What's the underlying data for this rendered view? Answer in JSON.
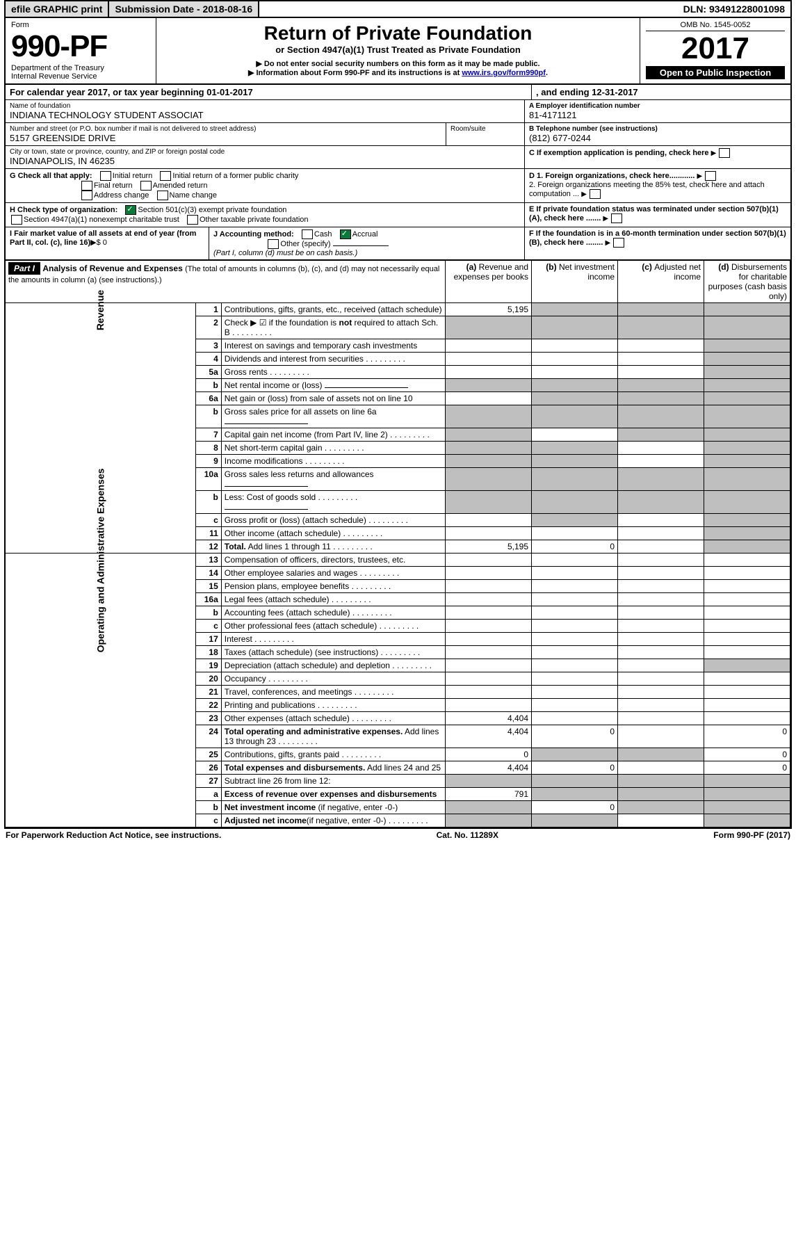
{
  "topbar": {
    "efile": "efile GRAPHIC print",
    "subdate_lbl": "Submission Date - 2018-08-16",
    "dln": "DLN: 93491228001098"
  },
  "hdr": {
    "form": "Form",
    "formno": "990-PF",
    "dept": "Department of the Treasury",
    "irs": "Internal Revenue Service",
    "title": "Return of Private Foundation",
    "subtitle": "or Section 4947(a)(1) Trust Treated as Private Foundation",
    "warn1": "▶ Do not enter social security numbers on this form as it may be made public.",
    "warn2": "▶ Information about Form 990-PF and its instructions is at ",
    "link": "www.irs.gov/form990pf",
    "dot": ".",
    "omb": "OMB No. 1545-0052",
    "year": "2017",
    "open": "Open to Public Inspection"
  },
  "cal": {
    "line": "For calendar year 2017, or tax year beginning 01-01-2017",
    "end": ", and ending 12-31-2017"
  },
  "id": {
    "name_lbl": "Name of foundation",
    "name": "INDIANA TECHNOLOGY STUDENT ASSOCIAT",
    "addr_lbl": "Number and street (or P.O. box number if mail is not delivered to street address)",
    "addr": "5157 GREENSIDE DRIVE",
    "room_lbl": "Room/suite",
    "city_lbl": "City or town, state or province, country, and ZIP or foreign postal code",
    "city": "INDIANAPOLIS, IN  46235",
    "a_lbl": "A Employer identification number",
    "a": "81-4171121",
    "b_lbl": "B Telephone number (see instructions)",
    "b": "(812) 677-0244",
    "c": "C If exemption application is pending, check here",
    "g": "G Check all that apply:",
    "g1": "Initial return",
    "g2": "Initial return of a former public charity",
    "g3": "Final return",
    "g4": "Amended return",
    "g5": "Address change",
    "g6": "Name change",
    "h": "H Check type of organization:",
    "h1": "Section 501(c)(3) exempt private foundation",
    "h2": "Section 4947(a)(1) nonexempt charitable trust",
    "h3": "Other taxable private foundation",
    "d1": "D 1. Foreign organizations, check here............",
    "d2": "2. Foreign organizations meeting the 85% test, check here and attach computation ...",
    "e": "E  If private foundation status was terminated under section 507(b)(1)(A), check here .......",
    "i": "I Fair market value of all assets at end of year (from Part II, col. (c), line 16)",
    "ival": "▶$  0",
    "j": "J Accounting method:",
    "j1": "Cash",
    "j2": "Accrual",
    "j3": "Other (specify)",
    "jnote": "(Part I, column (d) must be on cash basis.)",
    "f": "F  If the foundation is in a 60-month termination under section 507(b)(1)(B), check here ........"
  },
  "p1": {
    "tag": "Part I",
    "title": "Analysis of Revenue and Expenses ",
    "note": "(The total of amounts in columns (b), (c), and (d) may not necessarily equal the amounts in column (a) (see instructions).)",
    "ca": "(a)",
    "cal": "Revenue and expenses per books",
    "cb": "(b)",
    "cbl": "Net investment income",
    "cc": "(c)",
    "ccl": "Adjusted net income",
    "cd": "(d)",
    "cdl": "Disbursements for charitable purposes (cash basis only)",
    "sideRev": "Revenue",
    "sideExp": "Operating and Administrative Expenses"
  },
  "rows": [
    {
      "n": "1",
      "d": "Contributions, gifts, grants, etc., received (attach schedule)",
      "a": "5,195",
      "shB": 1,
      "shC": 1,
      "shD": 1
    },
    {
      "n": "2",
      "d": "Check ▶ ☑ if the foundation is <b>not</b> required to attach Sch. B",
      "dots": 1,
      "shA": 1,
      "shB": 1,
      "shC": 1,
      "shD": 1
    },
    {
      "n": "3",
      "d": "Interest on savings and temporary cash investments",
      "shD": 1
    },
    {
      "n": "4",
      "d": "Dividends and interest from securities",
      "dots": 1,
      "shD": 1
    },
    {
      "n": "5a",
      "d": "Gross rents",
      "dots": 1,
      "shD": 1
    },
    {
      "n": "b",
      "d": "Net rental income or (loss)",
      "ul": 1,
      "shA": 1,
      "shB": 1,
      "shC": 1,
      "shD": 1
    },
    {
      "n": "6a",
      "d": "Net gain or (loss) from sale of assets not on line 10",
      "shB": 1,
      "shC": 1,
      "shD": 1
    },
    {
      "n": "b",
      "d": "Gross sales price for all assets on line 6a",
      "ul": 1,
      "shA": 1,
      "shB": 1,
      "shC": 1,
      "shD": 1
    },
    {
      "n": "7",
      "d": "Capital gain net income (from Part IV, line 2)",
      "dots": 1,
      "shA": 1,
      "shC": 1,
      "shD": 1
    },
    {
      "n": "8",
      "d": "Net short-term capital gain",
      "dots": 1,
      "shA": 1,
      "shB": 1,
      "shD": 1
    },
    {
      "n": "9",
      "d": "Income modifications",
      "dots": 1,
      "shA": 1,
      "shB": 1,
      "shD": 1
    },
    {
      "n": "10a",
      "d": "Gross sales less returns and allowances",
      "ul": 1,
      "shA": 1,
      "shB": 1,
      "shC": 1,
      "shD": 1
    },
    {
      "n": "b",
      "d": "Less: Cost of goods sold",
      "dots": 1,
      "ul": 1,
      "shA": 1,
      "shB": 1,
      "shC": 1,
      "shD": 1
    },
    {
      "n": "c",
      "d": "Gross profit or (loss) (attach schedule)",
      "dots": 1,
      "shB": 1,
      "shD": 1
    },
    {
      "n": "11",
      "d": "Other income (attach schedule)",
      "dots": 1,
      "shD": 1
    },
    {
      "n": "12",
      "d": "<b>Total.</b> Add lines 1 through 11",
      "dots": 1,
      "a": "5,195",
      "b": "0",
      "shD": 1
    },
    {
      "n": "13",
      "d": "Compensation of officers, directors, trustees, etc."
    },
    {
      "n": "14",
      "d": "Other employee salaries and wages",
      "dots": 1
    },
    {
      "n": "15",
      "d": "Pension plans, employee benefits",
      "dots": 1
    },
    {
      "n": "16a",
      "d": "Legal fees (attach schedule)",
      "dots": 1
    },
    {
      "n": "b",
      "d": "Accounting fees (attach schedule)",
      "dots": 1
    },
    {
      "n": "c",
      "d": "Other professional fees (attach schedule)",
      "dots": 1
    },
    {
      "n": "17",
      "d": "Interest",
      "dots": 1
    },
    {
      "n": "18",
      "d": "Taxes (attach schedule) (see instructions)",
      "dots": 1
    },
    {
      "n": "19",
      "d": "Depreciation (attach schedule) and depletion",
      "dots": 1,
      "shD": 1
    },
    {
      "n": "20",
      "d": "Occupancy",
      "dots": 1
    },
    {
      "n": "21",
      "d": "Travel, conferences, and meetings",
      "dots": 1
    },
    {
      "n": "22",
      "d": "Printing and publications",
      "dots": 1
    },
    {
      "n": "23",
      "d": "Other expenses (attach schedule)",
      "dots": 1,
      "a": "4,404"
    },
    {
      "n": "24",
      "d": "<b>Total operating and administrative expenses.</b> Add lines 13 through 23",
      "dots": 1,
      "a": "4,404",
      "b": "0",
      "d4": "0"
    },
    {
      "n": "25",
      "d": "Contributions, gifts, grants paid",
      "dots": 1,
      "a": "0",
      "shB": 1,
      "shC": 1,
      "d4": "0"
    },
    {
      "n": "26",
      "d": "<b>Total expenses and disbursements.</b> Add lines 24 and 25",
      "a": "4,404",
      "b": "0",
      "d4": "0"
    },
    {
      "n": "27",
      "d": "Subtract line 26 from line 12:",
      "shA": 1,
      "shB": 1,
      "shC": 1,
      "shD": 1
    },
    {
      "n": "a",
      "d": "<b>Excess of revenue over expenses and disbursements</b>",
      "a": "791",
      "shB": 1,
      "shC": 1,
      "shD": 1
    },
    {
      "n": "b",
      "d": "<b>Net investment income</b> (if negative, enter -0-)",
      "shA": 1,
      "b": "0",
      "shC": 1,
      "shD": 1
    },
    {
      "n": "c",
      "d": "<b>Adjusted net income</b>(if negative, enter -0-)",
      "dots": 1,
      "shA": 1,
      "shB": 1,
      "shD": 1
    }
  ],
  "footer": {
    "l": "For Paperwork Reduction Act Notice, see instructions.",
    "c": "Cat. No. 11289X",
    "r": "Form 990-PF (2017)"
  }
}
